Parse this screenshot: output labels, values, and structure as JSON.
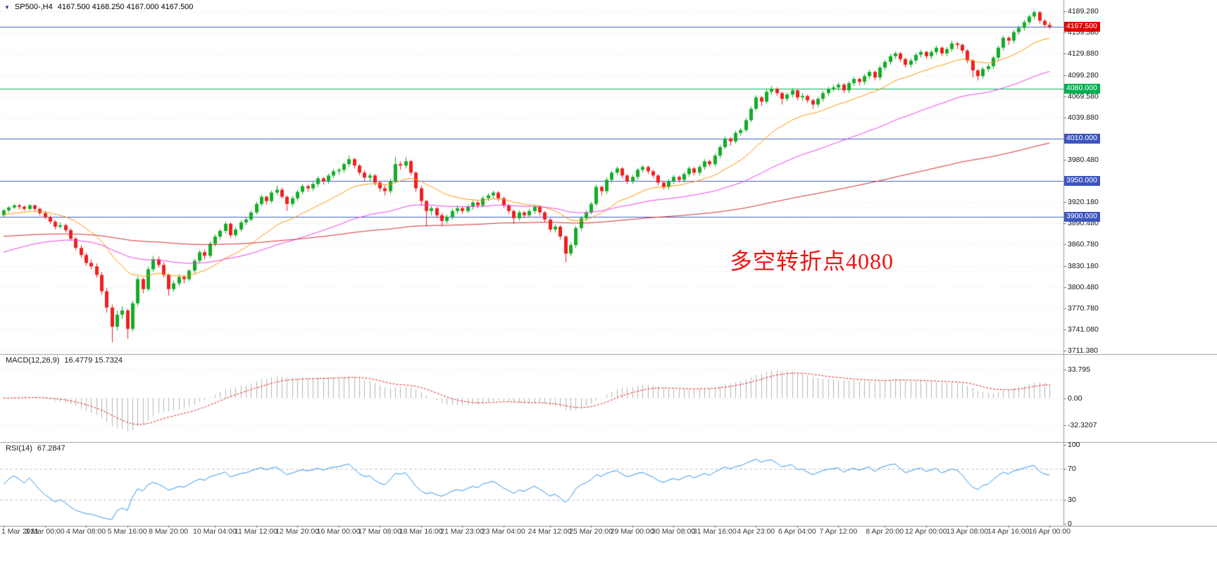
{
  "window": {
    "title_symbol": "SP500-,H4",
    "title_ohlc": "4167.500 4168.250 4167.000 4167.500"
  },
  "icons": {
    "dropdown_arrow": "▼"
  },
  "annotation": {
    "text": "多空转折点4080",
    "color": "#f01414"
  },
  "colors": {
    "up": "#13ad27",
    "down": "#ef2020",
    "ma_fast": "#ff9500",
    "ma_mid": "#e93fe9",
    "ma_slow": "#d62a2a",
    "level_blue": "#3c5fc4",
    "level_green": "#00b050",
    "hist": "#b5b5b5",
    "signal": "#e02020",
    "rsi_line": "#2b95f0",
    "grid": "#dedede",
    "separator": "#9a9a9a"
  },
  "chart_data": {
    "type": "candlestick-with-indicators",
    "symbol": "SP500-",
    "timeframe": "H4",
    "current": {
      "open": 4167.5,
      "high": 4168.25,
      "low": 4167.0,
      "close": 4167.5
    },
    "x_labels": [
      "1 Mar 2021",
      "3 Mar 00:00",
      "4 Mar 08:00",
      "5 Mar 16:00",
      "8 Mar 20:00",
      "10 Mar 04:00",
      "11 Mar 12:00",
      "12 Mar 20:00",
      "16 Mar 00:00",
      "17 Mar 08:00",
      "18 Mar 16:00",
      "21 Mar 23:00",
      "23 Mar 04:00",
      "24 Mar 12:00",
      "25 Mar 20:00",
      "29 Mar 00:00",
      "30 Mar 08:00",
      "31 Mar 16:00",
      "4 Apr 23:00",
      "6 Apr 04:00",
      "7 Apr 12:00",
      "8 Apr 20:00",
      "12 Apr 00:00",
      "13 Apr 08:00",
      "14 Apr 16:00",
      "16 Apr 00:00"
    ],
    "y_axis_labels": [
      {
        "t": "4189.280",
        "v": 4189.28
      },
      {
        "t": "4159.580",
        "v": 4159.58
      },
      {
        "t": "4129.880",
        "v": 4129.88
      },
      {
        "t": "4099.280",
        "v": 4099.28
      },
      {
        "t": "4069.580",
        "v": 4069.58
      },
      {
        "t": "4039.880",
        "v": 4039.88
      },
      {
        "t": "3980.480",
        "v": 3980.48
      },
      {
        "t": "3920.180",
        "v": 3920.18
      },
      {
        "t": "3890.480",
        "v": 3890.48
      },
      {
        "t": "3860.780",
        "v": 3860.78
      },
      {
        "t": "3830.180",
        "v": 3830.18
      },
      {
        "t": "3800.480",
        "v": 3800.48
      },
      {
        "t": "3770.780",
        "v": 3770.78
      },
      {
        "t": "3741.080",
        "v": 3741.08
      },
      {
        "t": "3711.380",
        "v": 3711.38
      }
    ],
    "price_tags": [
      {
        "text": "4167.500",
        "price": 4167.5,
        "bg": "#e00000"
      },
      {
        "text": "4080.000",
        "price": 4080,
        "bg": "#00b050"
      },
      {
        "text": "4010.000",
        "price": 4010,
        "bg": "#3c55c0"
      },
      {
        "text": "3950.000",
        "price": 3950,
        "bg": "#3c55c0"
      },
      {
        "text": "3900.000",
        "price": 3900,
        "bg": "#3c55c0"
      }
    ],
    "h_lines": [
      {
        "price": 4167.5,
        "color": "#3c5fc4"
      },
      {
        "price": 4080,
        "color": "#00b050"
      },
      {
        "price": 4010,
        "color": "#3c5fc4"
      },
      {
        "price": 3950,
        "color": "#3c5fc4"
      },
      {
        "price": 3900,
        "color": "#3c5fc4"
      }
    ],
    "moving_averages": [
      {
        "name": "fast",
        "period": 20,
        "color": "#ff9500",
        "seed": 3902
      },
      {
        "name": "medium",
        "period": 60,
        "color": "#e93fe9",
        "seed": 3848
      },
      {
        "name": "slow",
        "period": 200,
        "color": "#d62a2a",
        "seed": 3872
      }
    ],
    "indicators": {
      "macd": {
        "label": "MACD(12,26,9)",
        "values_text": "16.4779 15.7324",
        "fast": 12,
        "slow": 26,
        "signal": 9,
        "scale": [
          {
            "t": "33.795",
            "v": 33.795
          },
          {
            "t": "0.00",
            "v": 0
          },
          {
            "t": "-32.3207",
            "v": -32.3207
          }
        ]
      },
      "rsi": {
        "label": "RSI(14)",
        "value_text": "67.2847",
        "period": 14,
        "scale": [
          {
            "t": "100",
            "v": 100
          },
          {
            "t": "70",
            "v": 70
          },
          {
            "t": "30",
            "v": 30
          },
          {
            "t": "0",
            "v": 0
          }
        ],
        "dashed_levels": [
          70,
          30
        ]
      }
    },
    "candles": [
      [
        3902,
        3911,
        3899,
        3909
      ],
      [
        3909,
        3915,
        3906,
        3913
      ],
      [
        3913,
        3918,
        3911,
        3916
      ],
      [
        3916,
        3918,
        3910,
        3914
      ],
      [
        3914,
        3916,
        3908,
        3911
      ],
      [
        3911,
        3918,
        3909,
        3916
      ],
      [
        3916,
        3917,
        3908,
        3911
      ],
      [
        3911,
        3913,
        3902,
        3905
      ],
      [
        3905,
        3908,
        3896,
        3899
      ],
      [
        3899,
        3902,
        3890,
        3893
      ],
      [
        3893,
        3895,
        3882,
        3886
      ],
      [
        3886,
        3892,
        3883,
        3888
      ],
      [
        3888,
        3890,
        3878,
        3881
      ],
      [
        3881,
        3884,
        3866,
        3869
      ],
      [
        3869,
        3871,
        3853,
        3856
      ],
      [
        3856,
        3860,
        3842,
        3846
      ],
      [
        3846,
        3849,
        3831,
        3835
      ],
      [
        3835,
        3840,
        3826,
        3830
      ],
      [
        3830,
        3834,
        3814,
        3818
      ],
      [
        3818,
        3822,
        3790,
        3795
      ],
      [
        3795,
        3800,
        3765,
        3772
      ],
      [
        3772,
        3776,
        3723,
        3745
      ],
      [
        3745,
        3768,
        3740,
        3762
      ],
      [
        3762,
        3774,
        3756,
        3768
      ],
      [
        3768,
        3770,
        3728,
        3742
      ],
      [
        3742,
        3782,
        3738,
        3778
      ],
      [
        3778,
        3816,
        3774,
        3812
      ],
      [
        3812,
        3814,
        3792,
        3798
      ],
      [
        3798,
        3830,
        3795,
        3826
      ],
      [
        3826,
        3845,
        3822,
        3840
      ],
      [
        3840,
        3844,
        3828,
        3832
      ],
      [
        3832,
        3836,
        3814,
        3818
      ],
      [
        3818,
        3820,
        3789,
        3798
      ],
      [
        3798,
        3810,
        3794,
        3806
      ],
      [
        3806,
        3819,
        3802,
        3815
      ],
      [
        3815,
        3818,
        3806,
        3812
      ],
      [
        3812,
        3826,
        3809,
        3824
      ],
      [
        3824,
        3841,
        3820,
        3838
      ],
      [
        3838,
        3853,
        3834,
        3850
      ],
      [
        3850,
        3854,
        3840,
        3845
      ],
      [
        3845,
        3865,
        3842,
        3862
      ],
      [
        3862,
        3875,
        3858,
        3872
      ],
      [
        3872,
        3883,
        3868,
        3880
      ],
      [
        3880,
        3893,
        3876,
        3890
      ],
      [
        3890,
        3892,
        3870,
        3874
      ],
      [
        3874,
        3885,
        3871,
        3882
      ],
      [
        3882,
        3895,
        3879,
        3892
      ],
      [
        3892,
        3899,
        3888,
        3896
      ],
      [
        3896,
        3909,
        3893,
        3906
      ],
      [
        3906,
        3921,
        3903,
        3918
      ],
      [
        3918,
        3931,
        3915,
        3928
      ],
      [
        3928,
        3930,
        3917,
        3922
      ],
      [
        3922,
        3937,
        3919,
        3934
      ],
      [
        3934,
        3944,
        3930,
        3938
      ],
      [
        3938,
        3941,
        3925,
        3928
      ],
      [
        3928,
        3930,
        3908,
        3918
      ],
      [
        3918,
        3929,
        3914,
        3926
      ],
      [
        3926,
        3938,
        3922,
        3935
      ],
      [
        3935,
        3946,
        3931,
        3943
      ],
      [
        3943,
        3945,
        3935,
        3940
      ],
      [
        3940,
        3949,
        3936,
        3946
      ],
      [
        3946,
        3957,
        3942,
        3954
      ],
      [
        3954,
        3956,
        3945,
        3950
      ],
      [
        3950,
        3961,
        3946,
        3958
      ],
      [
        3958,
        3967,
        3954,
        3964
      ],
      [
        3964,
        3969,
        3959,
        3966
      ],
      [
        3966,
        3977,
        3962,
        3974
      ],
      [
        3974,
        3986,
        3970,
        3981
      ],
      [
        3981,
        3983,
        3968,
        3972
      ],
      [
        3972,
        3974,
        3958,
        3962
      ],
      [
        3962,
        3965,
        3950,
        3955
      ],
      [
        3955,
        3961,
        3950,
        3958
      ],
      [
        3958,
        3960,
        3944,
        3948
      ],
      [
        3948,
        3951,
        3935,
        3940
      ],
      [
        3940,
        3944,
        3930,
        3936
      ],
      [
        3936,
        3954,
        3932,
        3950
      ],
      [
        3950,
        3984,
        3947,
        3974
      ],
      [
        3974,
        3978,
        3966,
        3972
      ],
      [
        3972,
        3984,
        3968,
        3978
      ],
      [
        3978,
        3980,
        3958,
        3962
      ],
      [
        3962,
        3964,
        3935,
        3940
      ],
      [
        3940,
        3944,
        3916,
        3922
      ],
      [
        3922,
        3924,
        3886,
        3908
      ],
      [
        3908,
        3915,
        3902,
        3912
      ],
      [
        3912,
        3914,
        3898,
        3902
      ],
      [
        3902,
        3905,
        3886,
        3894
      ],
      [
        3894,
        3903,
        3890,
        3900
      ],
      [
        3900,
        3911,
        3896,
        3908
      ],
      [
        3908,
        3916,
        3904,
        3912
      ],
      [
        3912,
        3914,
        3904,
        3908
      ],
      [
        3908,
        3917,
        3905,
        3914
      ],
      [
        3914,
        3923,
        3910,
        3920
      ],
      [
        3920,
        3922,
        3912,
        3916
      ],
      [
        3916,
        3929,
        3913,
        3926
      ],
      [
        3926,
        3933,
        3922,
        3930
      ],
      [
        3930,
        3937,
        3926,
        3934
      ],
      [
        3934,
        3936,
        3922,
        3926
      ],
      [
        3926,
        3928,
        3912,
        3916
      ],
      [
        3916,
        3918,
        3904,
        3908
      ],
      [
        3908,
        3910,
        3890,
        3898
      ],
      [
        3898,
        3909,
        3894,
        3906
      ],
      [
        3906,
        3908,
        3898,
        3902
      ],
      [
        3902,
        3911,
        3899,
        3908
      ],
      [
        3908,
        3917,
        3904,
        3914
      ],
      [
        3914,
        3916,
        3902,
        3906
      ],
      [
        3906,
        3908,
        3892,
        3896
      ],
      [
        3896,
        3898,
        3878,
        3882
      ],
      [
        3882,
        3889,
        3878,
        3886
      ],
      [
        3886,
        3888,
        3868,
        3872
      ],
      [
        3872,
        3874,
        3836,
        3848
      ],
      [
        3848,
        3864,
        3844,
        3860
      ],
      [
        3860,
        3887,
        3856,
        3884
      ],
      [
        3884,
        3901,
        3880,
        3898
      ],
      [
        3898,
        3909,
        3894,
        3906
      ],
      [
        3906,
        3921,
        3903,
        3918
      ],
      [
        3918,
        3945,
        3915,
        3942
      ],
      [
        3942,
        3944,
        3930,
        3936
      ],
      [
        3936,
        3955,
        3932,
        3952
      ],
      [
        3952,
        3965,
        3948,
        3962
      ],
      [
        3962,
        3971,
        3958,
        3968
      ],
      [
        3968,
        3970,
        3954,
        3958
      ],
      [
        3958,
        3960,
        3946,
        3950
      ],
      [
        3950,
        3959,
        3946,
        3956
      ],
      [
        3956,
        3969,
        3952,
        3966
      ],
      [
        3966,
        3973,
        3962,
        3970
      ],
      [
        3970,
        3972,
        3960,
        3964
      ],
      [
        3964,
        3966,
        3954,
        3958
      ],
      [
        3958,
        3960,
        3944,
        3948
      ],
      [
        3948,
        3950,
        3938,
        3942
      ],
      [
        3942,
        3953,
        3938,
        3950
      ],
      [
        3950,
        3959,
        3946,
        3956
      ],
      [
        3956,
        3958,
        3948,
        3952
      ],
      [
        3952,
        3963,
        3948,
        3960
      ],
      [
        3960,
        3971,
        3956,
        3968
      ],
      [
        3968,
        3970,
        3958,
        3962
      ],
      [
        3962,
        3973,
        3958,
        3970
      ],
      [
        3970,
        3981,
        3966,
        3978
      ],
      [
        3978,
        3980,
        3970,
        3974
      ],
      [
        3974,
        3989,
        3971,
        3986
      ],
      [
        3986,
        4001,
        3982,
        3998
      ],
      [
        3998,
        4013,
        3995,
        4010
      ],
      [
        4010,
        4012,
        4000,
        4006
      ],
      [
        4006,
        4021,
        4003,
        4018
      ],
      [
        4018,
        4025,
        4014,
        4022
      ],
      [
        4022,
        4039,
        4019,
        4036
      ],
      [
        4036,
        4055,
        4033,
        4052
      ],
      [
        4052,
        4071,
        4049,
        4068
      ],
      [
        4068,
        4070,
        4056,
        4062
      ],
      [
        4062,
        4079,
        4059,
        4076
      ],
      [
        4076,
        4084,
        4072,
        4080
      ],
      [
        4080,
        4082,
        4070,
        4074
      ],
      [
        4074,
        4076,
        4058,
        4066
      ],
      [
        4066,
        4075,
        4062,
        4072
      ],
      [
        4072,
        4081,
        4068,
        4078
      ],
      [
        4078,
        4080,
        4064,
        4068
      ],
      [
        4068,
        4074,
        4063,
        4070
      ],
      [
        4070,
        4072,
        4060,
        4064
      ],
      [
        4064,
        4066,
        4052,
        4058
      ],
      [
        4058,
        4069,
        4054,
        4066
      ],
      [
        4066,
        4077,
        4062,
        4074
      ],
      [
        4074,
        4083,
        4070,
        4080
      ],
      [
        4080,
        4086,
        4076,
        4082
      ],
      [
        4082,
        4089,
        4078,
        4086
      ],
      [
        4086,
        4088,
        4074,
        4078
      ],
      [
        4078,
        4091,
        4074,
        4088
      ],
      [
        4088,
        4097,
        4084,
        4094
      ],
      [
        4094,
        4096,
        4085,
        4090
      ],
      [
        4090,
        4101,
        4086,
        4098
      ],
      [
        4098,
        4107,
        4094,
        4104
      ],
      [
        4104,
        4106,
        4092,
        4096
      ],
      [
        4096,
        4113,
        4092,
        4110
      ],
      [
        4110,
        4121,
        4106,
        4118
      ],
      [
        4118,
        4129,
        4114,
        4126
      ],
      [
        4126,
        4133,
        4122,
        4130
      ],
      [
        4130,
        4132,
        4118,
        4122
      ],
      [
        4122,
        4124,
        4110,
        4114
      ],
      [
        4114,
        4123,
        4110,
        4120
      ],
      [
        4120,
        4131,
        4116,
        4128
      ],
      [
        4128,
        4135,
        4124,
        4132
      ],
      [
        4132,
        4134,
        4122,
        4126
      ],
      [
        4126,
        4135,
        4122,
        4132
      ],
      [
        4132,
        4141,
        4128,
        4138
      ],
      [
        4138,
        4140,
        4126,
        4130
      ],
      [
        4130,
        4139,
        4126,
        4136
      ],
      [
        4136,
        4148,
        4132,
        4144
      ],
      [
        4144,
        4146,
        4136,
        4142
      ],
      [
        4142,
        4144,
        4130,
        4134
      ],
      [
        4134,
        4136,
        4116,
        4120
      ],
      [
        4120,
        4122,
        4096,
        4106
      ],
      [
        4106,
        4108,
        4092,
        4098
      ],
      [
        4098,
        4111,
        4094,
        4108
      ],
      [
        4108,
        4115,
        4104,
        4112
      ],
      [
        4112,
        4127,
        4108,
        4124
      ],
      [
        4124,
        4141,
        4120,
        4138
      ],
      [
        4138,
        4155,
        4134,
        4152
      ],
      [
        4152,
        4154,
        4142,
        4148
      ],
      [
        4148,
        4163,
        4144,
        4160
      ],
      [
        4160,
        4169,
        4156,
        4166
      ],
      [
        4166,
        4177,
        4162,
        4174
      ],
      [
        4174,
        4185,
        4170,
        4182
      ],
      [
        4182,
        4191,
        4178,
        4188
      ],
      [
        4188,
        4190,
        4172,
        4176
      ],
      [
        4176,
        4178,
        4166,
        4170
      ],
      [
        4170,
        4174,
        4164,
        4167.5
      ]
    ]
  }
}
